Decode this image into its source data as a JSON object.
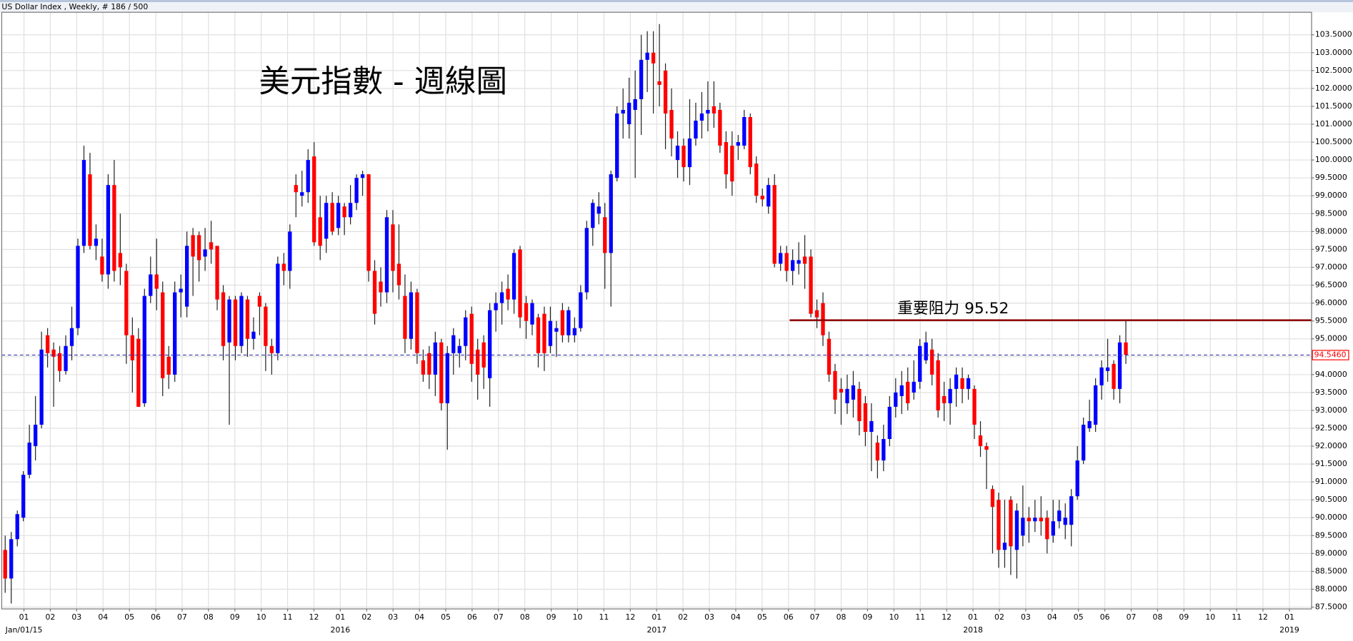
{
  "chart_data": {
    "type": "candlestick",
    "header": "US Dollar Index , Weekly, # 186 / 500",
    "title": "美元指數 - 週線圖",
    "up_color": "#0000ff",
    "down_color": "#ff0000",
    "grid": true,
    "xlim": [
      -0.57,
      215.66
    ],
    "ylim": [
      87.45,
      104.13
    ],
    "open": [
      89.1,
      88.3,
      89.4,
      90.0,
      91.2,
      92.0,
      92.6,
      95.1,
      94.7,
      94.6,
      94.1,
      94.8,
      95.3,
      97.6,
      99.6,
      97.6,
      97.3,
      96.8,
      99.3,
      97.4,
      96.9,
      95.1,
      95.0,
      93.2,
      96.2,
      96.8,
      96.3,
      94.5,
      94.0,
      96.3,
      95.9,
      97.9,
      97.9,
      97.3,
      97.7,
      97.6,
      96.3,
      94.9,
      96.1,
      94.8,
      96.1,
      95.0,
      96.2,
      95.9,
      94.8,
      94.6,
      97.1,
      96.9,
      99.3,
      99.0,
      99.1,
      100.1,
      98.4,
      97.8,
      98.8,
      98.1,
      98.7,
      98.4,
      98.8,
      99.5,
      99.6,
      96.9,
      96.6,
      96.3,
      98.2,
      97.1,
      96.2,
      95.0,
      96.3,
      94.4,
      94.6,
      94.0,
      94.9,
      93.2,
      94.6,
      94.6,
      94.8,
      95.7,
      94.7,
      94.9,
      93.9,
      95.8,
      96.0,
      96.4,
      96.1,
      97.5,
      96.0,
      95.4,
      95.6,
      95.7,
      94.8,
      95.2,
      95.8,
      95.1,
      95.1,
      95.3,
      96.3,
      98.1,
      98.5,
      98.4,
      97.4,
      99.5,
      101.3,
      101.0,
      101.4,
      101.7,
      102.8,
      103.0,
      102.2,
      102.5,
      101.4,
      100.0,
      100.4,
      99.8,
      100.6,
      101.1,
      101.3,
      101.5,
      101.4,
      100.5,
      100.4,
      100.4,
      100.4,
      101.2,
      99.9,
      99.0,
      98.7,
      99.3,
      97.1,
      97.4,
      96.9,
      97.1,
      97.3,
      97.3,
      95.8,
      96.0,
      95.0,
      94.1,
      93.6,
      93.2,
      93.3,
      93.6,
      93.2,
      92.4,
      92.1,
      91.6,
      92.2,
      93.1,
      93.4,
      93.8,
      93.5,
      93.8,
      94.4,
      94.7,
      94.4,
      93.4,
      93.2,
      93.6,
      93.9,
      93.6,
      93.6,
      92.3,
      92.0,
      90.8,
      90.5,
      89.1,
      90.5,
      89.1,
      89.5,
      90.0,
      89.9,
      90.0,
      90.0,
      89.5,
      89.9,
      89.8,
      89.8,
      90.6,
      91.6,
      92.5,
      92.6,
      93.7,
      94.1,
      94.3,
      93.6,
      94.9
    ],
    "high": [
      89.5,
      89.6,
      90.2,
      91.3,
      92.6,
      93.4,
      95.2,
      95.3,
      94.9,
      94.8,
      95.1,
      95.9,
      97.8,
      100.4,
      100.2,
      98.2,
      97.8,
      99.6,
      100.0,
      98.5,
      97.1,
      95.6,
      95.3,
      96.4,
      97.3,
      97.8,
      96.6,
      94.8,
      96.6,
      96.8,
      98.0,
      98.1,
      98.0,
      98.1,
      98.3,
      97.6,
      96.5,
      96.2,
      96.2,
      96.3,
      96.2,
      95.6,
      96.3,
      96.0,
      95.0,
      97.3,
      97.4,
      98.2,
      99.6,
      99.7,
      100.3,
      100.5,
      99.0,
      99.0,
      99.1,
      99.0,
      98.8,
      99.3,
      99.6,
      99.7,
      99.6,
      97.2,
      97.0,
      98.6,
      98.6,
      98.2,
      96.8,
      96.6,
      96.4,
      94.7,
      94.8,
      95.2,
      95.0,
      94.8,
      95.3,
      95.0,
      95.8,
      95.9,
      95.0,
      95.1,
      96.0,
      96.3,
      96.6,
      96.8,
      97.5,
      97.6,
      96.2,
      96.1,
      95.7,
      95.9,
      95.9,
      95.5,
      96.0,
      95.9,
      95.6,
      96.5,
      98.3,
      98.9,
      99.1,
      98.8,
      99.7,
      101.5,
      102.0,
      102.3,
      102.5,
      103.5,
      103.6,
      103.6,
      103.8,
      102.7,
      102.0,
      100.8,
      100.6,
      101.7,
      101.6,
      101.9,
      102.2,
      102.2,
      101.6,
      100.8,
      100.8,
      100.7,
      101.4,
      101.3,
      100.1,
      99.2,
      99.5,
      99.6,
      97.6,
      97.6,
      97.5,
      97.7,
      97.9,
      97.5,
      96.1,
      96.3,
      95.2,
      94.3,
      93.9,
      94.0,
      94.1,
      93.8,
      93.4,
      93.2,
      92.3,
      92.6,
      93.4,
      93.9,
      94.1,
      94.2,
      94.4,
      95.0,
      95.2,
      95.0,
      94.6,
      93.8,
      93.9,
      94.2,
      94.2,
      94.0,
      93.7,
      92.7,
      92.1,
      90.9,
      90.7,
      90.5,
      90.6,
      90.4,
      90.9,
      90.3,
      90.5,
      90.6,
      90.2,
      90.5,
      90.5,
      90.4,
      90.8,
      92.0,
      92.8,
      93.3,
      93.9,
      94.4,
      95.0,
      94.4,
      95.1,
      95.52
    ],
    "low": [
      87.9,
      87.6,
      89.2,
      89.9,
      91.1,
      91.6,
      92.5,
      94.2,
      93.1,
      93.8,
      94.0,
      94.4,
      95.1,
      97.4,
      97.5,
      97.2,
      96.6,
      96.4,
      96.6,
      96.5,
      94.3,
      93.5,
      93.1,
      93.1,
      96.0,
      95.8,
      93.4,
      93.6,
      93.8,
      95.6,
      95.6,
      96.2,
      96.6,
      96.9,
      97.1,
      95.8,
      94.4,
      92.6,
      94.4,
      94.6,
      94.5,
      94.7,
      95.1,
      94.1,
      94.0,
      94.4,
      96.5,
      96.4,
      98.4,
      98.7,
      98.8,
      97.6,
      97.2,
      97.4,
      97.9,
      97.9,
      97.9,
      98.2,
      98.6,
      99.0,
      96.6,
      95.4,
      95.9,
      96.0,
      96.3,
      96.1,
      94.6,
      94.7,
      94.3,
      93.8,
      93.6,
      93.4,
      93.0,
      91.9,
      94.0,
      94.2,
      94.4,
      93.8,
      93.3,
      93.6,
      93.1,
      95.2,
      95.4,
      95.8,
      95.7,
      95.3,
      95.0,
      95.1,
      94.2,
      94.1,
      94.6,
      94.5,
      94.9,
      94.9,
      94.9,
      95.2,
      96.1,
      97.6,
      98.2,
      96.4,
      95.9,
      99.4,
      100.6,
      100.6,
      99.5,
      100.7,
      101.9,
      101.3,
      101.5,
      100.3,
      100.1,
      99.5,
      99.4,
      99.3,
      100.4,
      100.6,
      100.8,
      100.9,
      100.2,
      99.2,
      99.0,
      100.0,
      100.3,
      99.6,
      98.8,
      98.7,
      98.5,
      97.0,
      96.9,
      96.6,
      96.5,
      96.8,
      96.4,
      95.6,
      95.3,
      94.8,
      93.8,
      92.9,
      92.6,
      92.9,
      92.8,
      92.3,
      92.0,
      91.3,
      91.1,
      91.3,
      92.0,
      92.8,
      92.9,
      93.0,
      93.3,
      93.6,
      94.3,
      93.7,
      92.8,
      92.7,
      92.6,
      93.1,
      93.2,
      93.3,
      92.2,
      91.7,
      90.8,
      89.0,
      88.6,
      88.6,
      88.4,
      88.3,
      89.2,
      89.3,
      89.6,
      89.5,
      89.0,
      89.3,
      89.7,
      89.4,
      89.2,
      90.5,
      91.5,
      92.4,
      92.4,
      93.3,
      93.8,
      93.3,
      93.2,
      94.3
    ],
    "close": [
      88.3,
      89.4,
      90.1,
      91.2,
      92.1,
      92.6,
      94.7,
      94.6,
      94.5,
      94.1,
      94.8,
      95.3,
      97.6,
      100.0,
      97.6,
      97.8,
      96.8,
      99.3,
      96.9,
      97.0,
      95.1,
      94.4,
      93.1,
      96.2,
      96.8,
      96.4,
      93.9,
      94.0,
      96.3,
      96.4,
      97.6,
      97.3,
      97.2,
      97.5,
      97.5,
      96.1,
      94.8,
      96.1,
      94.8,
      96.2,
      95.0,
      95.2,
      95.9,
      94.8,
      94.6,
      97.1,
      96.9,
      98.0,
      99.1,
      99.1,
      100.0,
      97.7,
      97.6,
      98.8,
      98.0,
      98.8,
      98.4,
      98.8,
      99.5,
      99.6,
      96.9,
      95.7,
      96.3,
      98.4,
      96.9,
      96.5,
      95.0,
      96.3,
      94.6,
      94.0,
      94.0,
      94.9,
      93.2,
      94.6,
      95.1,
      94.8,
      95.6,
      94.3,
      94.0,
      94.2,
      95.8,
      96.0,
      96.3,
      96.1,
      97.4,
      95.6,
      95.5,
      96.0,
      94.6,
      94.6,
      95.5,
      95.3,
      95.1,
      95.8,
      95.3,
      96.3,
      98.1,
      98.8,
      98.7,
      97.4,
      99.6,
      101.3,
      101.4,
      101.6,
      101.7,
      102.8,
      103.0,
      102.7,
      102.1,
      101.3,
      100.6,
      100.4,
      99.8,
      100.6,
      101.1,
      101.3,
      101.4,
      101.3,
      100.4,
      99.6,
      99.4,
      100.5,
      101.2,
      99.8,
      99.0,
      98.9,
      99.3,
      97.1,
      97.4,
      96.9,
      97.2,
      97.2,
      97.1,
      95.7,
      95.6,
      95.1,
      94.0,
      93.3,
      93.5,
      93.6,
      93.7,
      92.7,
      92.4,
      92.7,
      91.6,
      92.2,
      93.1,
      93.5,
      93.7,
      93.2,
      93.8,
      94.8,
      94.9,
      94.0,
      93.0,
      93.2,
      93.6,
      94.0,
      93.6,
      93.9,
      92.6,
      92.0,
      91.9,
      90.3,
      89.1,
      89.3,
      89.2,
      90.2,
      90.0,
      89.9,
      90.0,
      89.9,
      89.4,
      89.9,
      90.2,
      90.0,
      90.6,
      91.6,
      92.6,
      92.7,
      93.7,
      94.2,
      94.2,
      93.6,
      94.9,
      94.55
    ],
    "yticks": [
      {
        "value": 87.5,
        "label": "87.5000"
      },
      {
        "value": 88,
        "label": "88.0000"
      },
      {
        "value": 88.5,
        "label": "88.5000"
      },
      {
        "value": 89,
        "label": "89.0000"
      },
      {
        "value": 89.5,
        "label": "89.5000"
      },
      {
        "value": 90,
        "label": "90.0000"
      },
      {
        "value": 90.5,
        "label": "90.5000"
      },
      {
        "value": 91,
        "label": "91.0000"
      },
      {
        "value": 91.5,
        "label": "91.5000"
      },
      {
        "value": 92,
        "label": "92.0000"
      },
      {
        "value": 92.5,
        "label": "92.5000"
      },
      {
        "value": 93,
        "label": "93.0000"
      },
      {
        "value": 93.5,
        "label": "93.5000"
      },
      {
        "value": 94,
        "label": "94.0000"
      },
      {
        "value": 94.5,
        "label": "94.5000"
      },
      {
        "value": 95,
        "label": "95.0000"
      },
      {
        "value": 95.5,
        "label": "95.5000"
      },
      {
        "value": 96,
        "label": "96.0000"
      },
      {
        "value": 96.5,
        "label": "96.5000"
      },
      {
        "value": 97,
        "label": "97.0000"
      },
      {
        "value": 97.5,
        "label": "97.5000"
      },
      {
        "value": 98,
        "label": "98.0000"
      },
      {
        "value": 98.5,
        "label": "98.5000"
      },
      {
        "value": 99,
        "label": "99.0000"
      },
      {
        "value": 99.5,
        "label": "99.5000"
      },
      {
        "value": 100,
        "label": "100.0000"
      },
      {
        "value": 100.5,
        "label": "100.5000"
      },
      {
        "value": 101,
        "label": "101.0000"
      },
      {
        "value": 101.5,
        "label": "101.5000"
      },
      {
        "value": 102,
        "label": "102.0000"
      },
      {
        "value": 102.5,
        "label": "102.5000"
      },
      {
        "value": 103,
        "label": "103.0000"
      },
      {
        "value": 103.5,
        "label": "103.5000"
      }
    ],
    "xticks": [
      {
        "value": 3.1,
        "label": "01"
      },
      {
        "value": 7.45,
        "label": "02"
      },
      {
        "value": 11.8,
        "label": "03"
      },
      {
        "value": 16.16,
        "label": "04"
      },
      {
        "value": 20.51,
        "label": "05"
      },
      {
        "value": 24.86,
        "label": "06"
      },
      {
        "value": 29.21,
        "label": "07"
      },
      {
        "value": 33.56,
        "label": "08"
      },
      {
        "value": 37.92,
        "label": "09"
      },
      {
        "value": 42.27,
        "label": "10"
      },
      {
        "value": 46.62,
        "label": "11"
      },
      {
        "value": 50.97,
        "label": "12"
      },
      {
        "value": 55.32,
        "label": "01"
      },
      {
        "value": 59.68,
        "label": "02"
      },
      {
        "value": 64.03,
        "label": "03"
      },
      {
        "value": 68.38,
        "label": "04"
      },
      {
        "value": 72.73,
        "label": "05"
      },
      {
        "value": 77.08,
        "label": "06"
      },
      {
        "value": 81.44,
        "label": "07"
      },
      {
        "value": 85.79,
        "label": "08"
      },
      {
        "value": 90.14,
        "label": "09"
      },
      {
        "value": 94.49,
        "label": "10"
      },
      {
        "value": 98.84,
        "label": "11"
      },
      {
        "value": 103.2,
        "label": "12"
      },
      {
        "value": 107.55,
        "label": "01"
      },
      {
        "value": 111.9,
        "label": "02"
      },
      {
        "value": 116.25,
        "label": "03"
      },
      {
        "value": 120.6,
        "label": "04"
      },
      {
        "value": 124.96,
        "label": "05"
      },
      {
        "value": 129.31,
        "label": "06"
      },
      {
        "value": 133.66,
        "label": "07"
      },
      {
        "value": 138.01,
        "label": "08"
      },
      {
        "value": 142.36,
        "label": "09"
      },
      {
        "value": 146.72,
        "label": "10"
      },
      {
        "value": 151.07,
        "label": "11"
      },
      {
        "value": 155.42,
        "label": "12"
      },
      {
        "value": 159.77,
        "label": "01"
      },
      {
        "value": 164.12,
        "label": "02"
      },
      {
        "value": 168.48,
        "label": "03"
      },
      {
        "value": 172.83,
        "label": "04"
      },
      {
        "value": 177.18,
        "label": "05"
      },
      {
        "value": 181.53,
        "label": "06"
      },
      {
        "value": 185.88,
        "label": "07"
      },
      {
        "value": 190.24,
        "label": "08"
      },
      {
        "value": 194.59,
        "label": "09"
      },
      {
        "value": 198.94,
        "label": "10"
      },
      {
        "value": 203.29,
        "label": "11"
      },
      {
        "value": 207.64,
        "label": "12"
      },
      {
        "value": 212.0,
        "label": "01"
      }
    ],
    "xyears": [
      {
        "value": 3.1,
        "label": "Jan/01/15"
      },
      {
        "value": 55.32,
        "label": "2016"
      },
      {
        "value": 107.55,
        "label": "2017"
      },
      {
        "value": 159.77,
        "label": "2018"
      },
      {
        "value": 212.0,
        "label": "2019"
      }
    ],
    "resistance": {
      "label": "重要阻力 95.52",
      "value": 95.52,
      "x_start": 129.5,
      "color": "#8b0000"
    },
    "last_price": {
      "value": 94.546,
      "label": "94.5460",
      "color": "#3333aa",
      "label_color": "#ff0000"
    }
  }
}
